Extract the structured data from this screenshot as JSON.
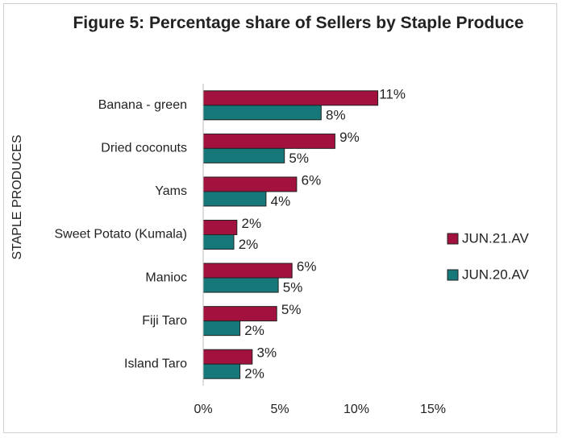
{
  "chart_data": {
    "type": "hbar",
    "title": "Figure 5: Percentage share of Sellers by Staple Produce",
    "y_label": "STAPLE PRODUCES",
    "categories": [
      "Banana - green",
      "Dried coconuts",
      "Yams",
      "Sweet Potato (Kumala)",
      "Manioc",
      "Fiji Taro",
      "Island Taro"
    ],
    "series": [
      {
        "name": "JUN.21.AV",
        "color": "#a3123f",
        "values": [
          11.4,
          8.6,
          6.1,
          2.2,
          5.8,
          4.8,
          3.2
        ],
        "value_labels": [
          "11%",
          "9%",
          "6%",
          "2%",
          "6%",
          "5%",
          "3%"
        ]
      },
      {
        "name": "JUN.20.AV",
        "color": "#17787a",
        "values": [
          7.7,
          5.3,
          4.1,
          2.0,
          4.9,
          2.4,
          2.4
        ],
        "value_labels": [
          "8%",
          "5%",
          "4%",
          "2%",
          "5%",
          "2%",
          "2%"
        ]
      }
    ],
    "xlim": [
      0,
      15
    ],
    "xticks": [
      {
        "value": 0,
        "label": "0%"
      },
      {
        "value": 5,
        "label": "5%"
      },
      {
        "value": 10,
        "label": "10%"
      },
      {
        "value": 15,
        "label": "15%"
      }
    ],
    "legend": "right"
  }
}
